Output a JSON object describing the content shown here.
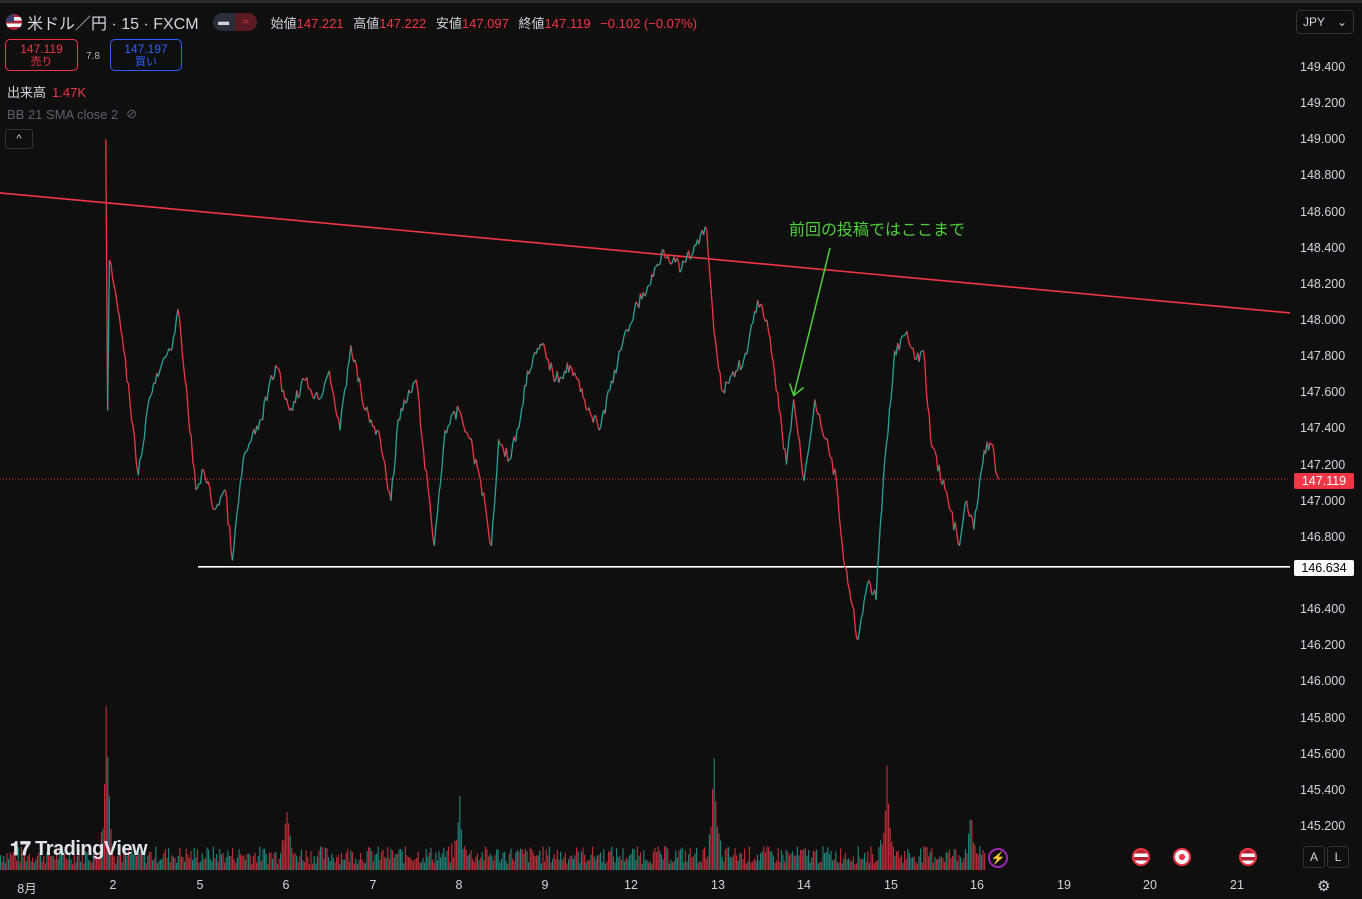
{
  "header": {
    "symbol": "米ドル／円 · 15 · FXCM",
    "open_label": "始値",
    "open": "147.221",
    "high_label": "高値",
    "high": "147.222",
    "low_label": "安値",
    "low": "147.097",
    "close_label": "終値",
    "close": "147.119",
    "change": "−0.102 (−0.07%)",
    "sell_price": "147.119",
    "sell_label": "売り",
    "spread": "7.8",
    "buy_price": "147.197",
    "buy_label": "買い",
    "volume_label": "出来高",
    "volume": "1.47K",
    "indicator": "BB 21 SMA close 2",
    "currency": "JPY",
    "logo": "TradingView"
  },
  "scale_buttons": {
    "auto": "A",
    "log": "L"
  },
  "colors": {
    "up": "#26a69a",
    "down": "#f23645",
    "trendline": "#f23645",
    "support": "#ffffff",
    "annotation": "#4cd137",
    "background": "#0f0f0f"
  },
  "icons": [
    "us-flag-icon",
    "hidden-eye-icon",
    "chevron-up-icon",
    "lightning-icon",
    "us-event-icon",
    "jp-event-icon",
    "gear-icon"
  ],
  "chart_data": {
    "type": "candlestick",
    "title": "米ドル／円 · 15 · FXCM",
    "y_ticks": [
      "149.400",
      "149.200",
      "149.000",
      "148.800",
      "148.600",
      "148.400",
      "148.200",
      "148.000",
      "147.800",
      "147.600",
      "147.400",
      "147.200",
      "147.000",
      "146.800",
      "146.400",
      "146.200",
      "146.000",
      "145.800",
      "145.600",
      "145.400",
      "145.200"
    ],
    "ylim": [
      145.2,
      149.4
    ],
    "x_ticks": [
      "8月",
      "2",
      "5",
      "6",
      "7",
      "8",
      "9",
      "12",
      "13",
      "14",
      "15",
      "16",
      "19",
      "20",
      "21"
    ],
    "last_price": "147.119",
    "support_level": "146.634",
    "trendline": [
      {
        "time": "8/2 00:00",
        "price": 148.645
      },
      {
        "time": "8/16 00:00",
        "price": 148.2
      }
    ],
    "annotation": "前回の投稿ではここまで",
    "annotation_target": {
      "time": "8/13 21:00",
      "price": 147.56
    },
    "price_path": [
      [
        "8/1 22:00",
        149.0
      ],
      [
        "8/1 22:30",
        147.5
      ],
      [
        "8/1 23:00",
        148.33
      ],
      [
        "8/2 01:00",
        148.11
      ],
      [
        "8/2 03:00",
        147.83
      ],
      [
        "8/2 06:00",
        147.34
      ],
      [
        "8/2 07:00",
        147.14
      ],
      [
        "8/2 10:00",
        147.56
      ],
      [
        "8/2 13:00",
        147.72
      ],
      [
        "8/2 16:00",
        147.83
      ],
      [
        "8/2 18:00",
        148.06
      ],
      [
        "8/2 20:00",
        147.67
      ],
      [
        "8/2 23:00",
        147.06
      ],
      [
        "8/5 01:00",
        147.17
      ],
      [
        "8/5 04:00",
        146.95
      ],
      [
        "8/5 07:00",
        147.06
      ],
      [
        "8/5 09:00",
        146.67
      ],
      [
        "8/5 12:00",
        147.23
      ],
      [
        "8/5 17:00",
        147.45
      ],
      [
        "8/5 21:00",
        147.75
      ],
      [
        "8/6 01:00",
        147.5
      ],
      [
        "8/6 05:00",
        147.67
      ],
      [
        "8/6 09:00",
        147.56
      ],
      [
        "8/6 12:00",
        147.72
      ],
      [
        "8/6 15:00",
        147.39
      ],
      [
        "8/6 18:00",
        147.86
      ],
      [
        "8/6 22:00",
        147.5
      ],
      [
        "8/7 02:00",
        147.34
      ],
      [
        "8/7 05:00",
        147.0
      ],
      [
        "8/7 07:00",
        147.45
      ],
      [
        "8/7 12:00",
        147.67
      ],
      [
        "8/7 14:00",
        147.28
      ],
      [
        "8/7 17:00",
        146.75
      ],
      [
        "8/7 20:00",
        147.39
      ],
      [
        "8/8 00:00",
        147.5
      ],
      [
        "8/8 03:00",
        147.34
      ],
      [
        "8/8 06:00",
        147.11
      ],
      [
        "8/8 09:00",
        146.75
      ],
      [
        "8/8 11:00",
        147.34
      ],
      [
        "8/8 14:00",
        147.23
      ],
      [
        "8/8 17:00",
        147.45
      ],
      [
        "8/8 19:00",
        147.72
      ],
      [
        "8/8 23:00",
        147.86
      ],
      [
        "8/9 03:00",
        147.67
      ],
      [
        "8/9 07:00",
        147.75
      ],
      [
        "8/9 11:00",
        147.56
      ],
      [
        "8/9 15:00",
        147.39
      ],
      [
        "8/9 18:00",
        147.61
      ],
      [
        "8/9 21:00",
        147.83
      ],
      [
        "8/12 01:00",
        148.06
      ],
      [
        "8/12 05:00",
        148.19
      ],
      [
        "8/12 09:00",
        148.39
      ],
      [
        "8/12 14:00",
        148.28
      ],
      [
        "8/12 18:00",
        148.41
      ],
      [
        "8/12 21:00",
        148.5
      ],
      [
        "8/12 23:00",
        147.94
      ],
      [
        "8/13 01:00",
        147.61
      ],
      [
        "8/13 05:00",
        147.72
      ],
      [
        "8/13 08:00",
        147.81
      ],
      [
        "8/13 11:00",
        148.11
      ],
      [
        "8/13 14:00",
        147.94
      ],
      [
        "8/13 17:00",
        147.5
      ],
      [
        "8/13 19:00",
        147.2
      ],
      [
        "8/13 21:00",
        147.56
      ],
      [
        "8/14 00:00",
        147.11
      ],
      [
        "8/14 03:00",
        147.56
      ],
      [
        "8/14 06:00",
        147.34
      ],
      [
        "8/14 09:00",
        147.11
      ],
      [
        "8/14 11:00",
        146.67
      ],
      [
        "8/14 13:00",
        146.45
      ],
      [
        "8/14 15:00",
        146.23
      ],
      [
        "8/14 18:00",
        146.56
      ],
      [
        "8/14 20:00",
        146.45
      ],
      [
        "8/14 22:00",
        147.11
      ],
      [
        "8/15 00:00",
        147.56
      ],
      [
        "8/15 01:00",
        147.83
      ],
      [
        "8/15 04:00",
        147.92
      ],
      [
        "8/15 07:00",
        147.78
      ],
      [
        "8/15 09:00",
        147.83
      ],
      [
        "8/15 11:00",
        147.34
      ],
      [
        "8/15 15:00",
        147.06
      ],
      [
        "8/15 19:00",
        146.75
      ],
      [
        "8/15 21:00",
        147.0
      ],
      [
        "8/15 23:00",
        146.84
      ],
      [
        "8/16 02:00",
        147.28
      ],
      [
        "8/16 04:00",
        147.31
      ],
      [
        "8/16 06:00",
        147.119
      ]
    ],
    "volume_spikes": [
      [
        "8/1 22:00",
        1.0
      ],
      [
        "8/6 00:00",
        0.4
      ],
      [
        "8/8 00:00",
        0.35
      ],
      [
        "8/12 23:00",
        0.6
      ],
      [
        "8/14 23:00",
        0.5
      ],
      [
        "8/15 22:00",
        0.28
      ]
    ]
  }
}
